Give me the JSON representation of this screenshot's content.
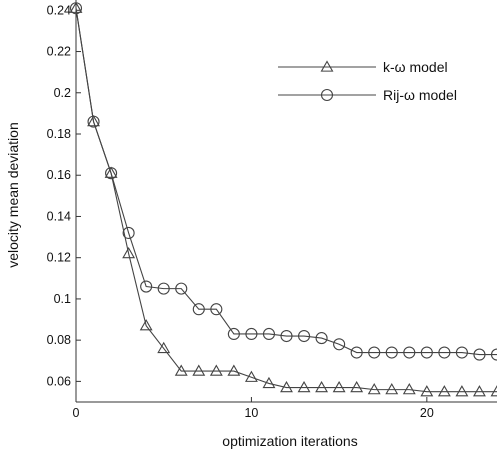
{
  "chart_data": {
    "type": "line",
    "title": "",
    "xlabel": "optimization iterations",
    "ylabel": "velocity mean deviation",
    "xlim": [
      0,
      24
    ],
    "ylim": [
      0.05,
      0.245
    ],
    "xticks": [
      0,
      10,
      20
    ],
    "yticks": [
      0.06,
      0.08,
      0.1,
      0.12,
      0.14,
      0.16,
      0.18,
      0.2,
      0.22,
      0.24
    ],
    "ytick_labels": [
      "0.06",
      "0.08",
      "0.1",
      "0.12",
      "0.14",
      "0.16",
      "0.18",
      "0.2",
      "0.22",
      "0.24"
    ],
    "xtick_labels": [
      "0",
      "10",
      "20"
    ],
    "grid": false,
    "legend": "top-right",
    "series": [
      {
        "name": "k-ω model",
        "marker": "triangle",
        "color": "#333333",
        "x": [
          0,
          1,
          2,
          3,
          4,
          5,
          6,
          7,
          8,
          9,
          10,
          11,
          12,
          13,
          14,
          15,
          16,
          17,
          18,
          19,
          20,
          21,
          22,
          23,
          24
        ],
        "y": [
          0.241,
          0.186,
          0.161,
          0.122,
          0.087,
          0.076,
          0.065,
          0.065,
          0.065,
          0.065,
          0.062,
          0.059,
          0.057,
          0.057,
          0.057,
          0.057,
          0.057,
          0.056,
          0.056,
          0.056,
          0.055,
          0.055,
          0.055,
          0.055,
          0.055
        ]
      },
      {
        "name": "Rij-ω model",
        "marker": "circle",
        "color": "#333333",
        "x": [
          0,
          1,
          2,
          3,
          4,
          5,
          6,
          7,
          8,
          9,
          10,
          11,
          12,
          13,
          14,
          15,
          16,
          17,
          18,
          19,
          20,
          21,
          22,
          23,
          24
        ],
        "y": [
          0.241,
          0.186,
          0.161,
          0.132,
          0.106,
          0.105,
          0.105,
          0.095,
          0.095,
          0.083,
          0.083,
          0.083,
          0.082,
          0.082,
          0.081,
          0.078,
          0.074,
          0.074,
          0.074,
          0.074,
          0.074,
          0.074,
          0.074,
          0.073,
          0.073
        ]
      }
    ]
  }
}
